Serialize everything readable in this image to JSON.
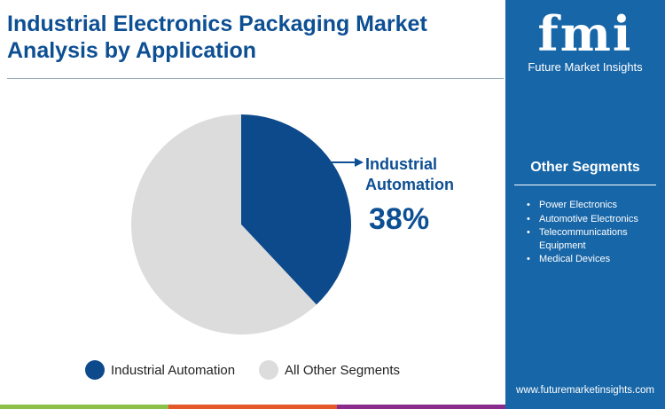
{
  "title": "Industrial Electronics Packaging Market Analysis by Application",
  "brand": {
    "mark": "fmi",
    "name": "Future Market Insights",
    "url": "www.futuremarketinsights.com"
  },
  "other_segments": {
    "title": "Other Segments",
    "items": [
      "Power Electronics",
      "Automotive Electronics",
      "Telecommunications Equipment",
      "Medical Devices"
    ]
  },
  "chart_data": {
    "type": "pie",
    "series": [
      {
        "label": "Industrial Automation",
        "value": 38,
        "color": "#0d4a8b"
      },
      {
        "label": "All Other Segments",
        "value": 62,
        "color": "#dcdcdc"
      }
    ],
    "callout": {
      "label": "Industrial Automation",
      "value_label": "38%"
    },
    "legend_position": "bottom"
  },
  "colors": {
    "accent": "#0d4f93",
    "panel": "#1766a8",
    "bars": [
      "#8cc04a",
      "#e4582a",
      "#8a2c8c"
    ]
  }
}
